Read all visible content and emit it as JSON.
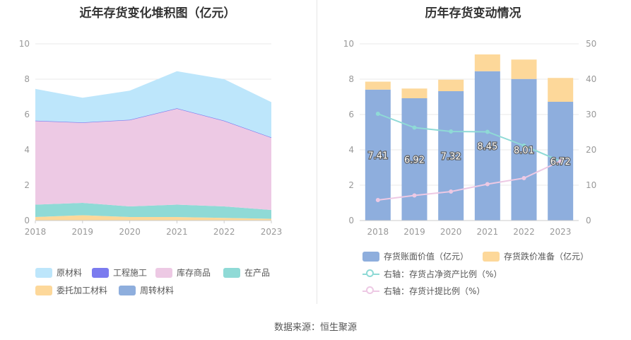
{
  "source": "数据来源：恒生聚源",
  "chart_data": [
    {
      "type": "area",
      "title": "近年存货变化堆积图（亿元）",
      "x": [
        "2018",
        "2019",
        "2020",
        "2021",
        "2022",
        "2023"
      ],
      "ylim": [
        0,
        10
      ],
      "yticks": [
        "0",
        "2",
        "4",
        "6",
        "8",
        "10"
      ],
      "stacked": true,
      "grid": true,
      "legend_position": "bottom",
      "series": [
        {
          "name": "委托加工材料",
          "color": "#FDD89A",
          "values": [
            0.2,
            0.3,
            0.2,
            0.2,
            0.15,
            0.1
          ]
        },
        {
          "name": "在产品",
          "color": "#8FDAD6",
          "values": [
            0.7,
            0.7,
            0.6,
            0.7,
            0.65,
            0.5
          ]
        },
        {
          "name": "库存商品",
          "color": "#EDC9E4",
          "values": [
            4.75,
            4.55,
            4.9,
            5.45,
            4.85,
            4.1
          ]
        },
        {
          "name": "工程施工",
          "color": "#7B7BEF",
          "values": [
            0.0,
            0.0,
            0.0,
            0.0,
            0.0,
            0.0
          ]
        },
        {
          "name": "原材料",
          "color": "#BDE6FB",
          "values": [
            1.8,
            1.4,
            1.65,
            2.1,
            2.35,
            2.0
          ]
        },
        {
          "name": "周转材料",
          "color": "#8EAEDD",
          "values": [
            0,
            0,
            0,
            0,
            0,
            0
          ]
        }
      ],
      "legend_order": [
        "原材料",
        "工程施工",
        "库存商品",
        "在产品",
        "委托加工材料",
        "周转材料"
      ]
    },
    {
      "type": "bar",
      "title": "历年存货变动情况",
      "categories": [
        "2018",
        "2019",
        "2020",
        "2021",
        "2022",
        "2023"
      ],
      "ylim_left": [
        0,
        10
      ],
      "yticks_left": [
        "0",
        "2",
        "4",
        "6",
        "8",
        "10"
      ],
      "ylim_right": [
        0,
        50
      ],
      "yticks_right": [
        "0",
        "10",
        "20",
        "30",
        "40",
        "50"
      ],
      "legend_position": "bottom",
      "series": [
        {
          "name": "存货账面价值（亿元）",
          "type": "bar",
          "axis": "left",
          "color": "#8EAEDD",
          "values": [
            7.41,
            6.92,
            7.32,
            8.45,
            8.01,
            6.72
          ],
          "labels": [
            "7.41",
            "6.92",
            "7.32",
            "8.45",
            "8.01",
            "6.72"
          ]
        },
        {
          "name": "存货跌价准备（亿元）",
          "type": "bar",
          "axis": "left",
          "color": "#FDD89A",
          "values": [
            0.45,
            0.55,
            0.65,
            0.95,
            1.1,
            1.35
          ]
        },
        {
          "name": "右轴：存货占净资产比例（%）",
          "type": "line",
          "axis": "right",
          "color": "#8FDAD6",
          "values": [
            30.2,
            26.3,
            25.2,
            25.1,
            21.2,
            16.8
          ]
        },
        {
          "name": "右轴：存货计提比例（%）",
          "type": "line",
          "axis": "right",
          "color": "#EDC9E4",
          "values": [
            5.8,
            7.1,
            8.2,
            10.3,
            12.0,
            16.8
          ]
        }
      ]
    }
  ]
}
